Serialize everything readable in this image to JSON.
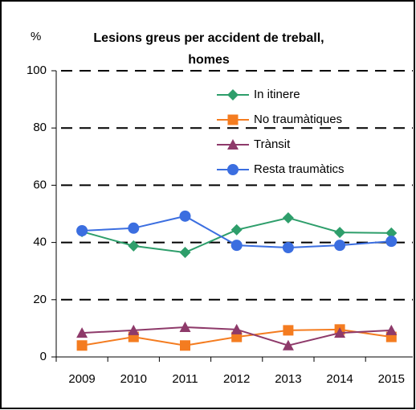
{
  "chart_data": {
    "type": "line",
    "title": "Lesions greus per accident de treball, homes",
    "y_label": "%",
    "categories": [
      "2009",
      "2010",
      "2011",
      "2012",
      "2013",
      "2014",
      "2015"
    ],
    "series": [
      {
        "name": "In itinere",
        "color": "#2e9e6b",
        "marker": "diamond",
        "values": [
          43.8,
          38.8,
          36.5,
          44.4,
          48.6,
          43.5,
          43.3
        ]
      },
      {
        "name": "No traumàtiques",
        "color": "#f47c20",
        "marker": "square",
        "values": [
          4.0,
          7.0,
          4.0,
          7.0,
          9.3,
          9.6,
          7.0
        ]
      },
      {
        "name": "Trànsit",
        "color": "#8e3a6a",
        "marker": "triangle",
        "values": [
          8.4,
          9.3,
          10.4,
          9.6,
          4.0,
          8.4,
          9.3
        ]
      },
      {
        "name": "Resta traumàtics",
        "color": "#3b6ee0",
        "marker": "circle",
        "values": [
          44.1,
          45.0,
          49.2,
          39.0,
          38.2,
          39.0,
          40.4
        ]
      }
    ],
    "ylim": [
      0,
      100
    ],
    "yticks": [
      0,
      20,
      40,
      60,
      80,
      100
    ],
    "grid": true,
    "legend": "upper right"
  }
}
